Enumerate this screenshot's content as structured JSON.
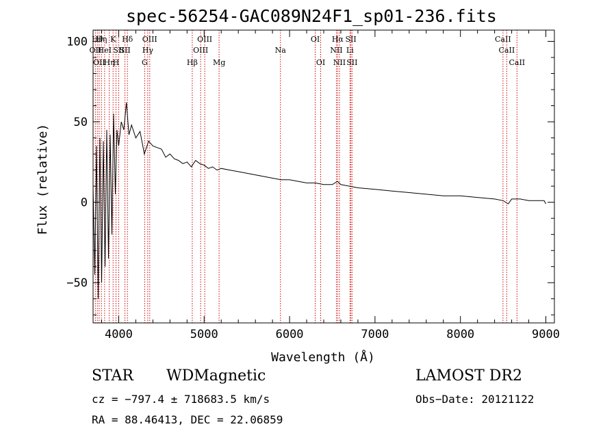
{
  "chart_data": {
    "type": "line",
    "title": "spec-56254-GAC089N24F1_sp01-236.fits",
    "xlabel": "Wavelength (Å)",
    "ylabel": "Flux (relative)",
    "xlim": [
      3700,
      9100
    ],
    "ylim": [
      -75,
      107
    ],
    "xticks": [
      4000,
      5000,
      6000,
      7000,
      8000,
      9000
    ],
    "yticks": [
      -50,
      0,
      50,
      100
    ],
    "grid": false,
    "spectrum": {
      "x": [
        3700,
        3720,
        3740,
        3760,
        3780,
        3800,
        3820,
        3840,
        3860,
        3880,
        3900,
        3920,
        3940,
        3960,
        3980,
        4000,
        4030,
        4060,
        4090,
        4120,
        4150,
        4200,
        4250,
        4300,
        4350,
        4400,
        4450,
        4500,
        4550,
        4600,
        4650,
        4700,
        4750,
        4800,
        4850,
        4900,
        4950,
        5000,
        5050,
        5100,
        5150,
        5200,
        5300,
        5400,
        5500,
        5600,
        5700,
        5800,
        5900,
        6000,
        6100,
        6200,
        6300,
        6400,
        6500,
        6560,
        6600,
        6700,
        6800,
        7000,
        7200,
        7400,
        7600,
        7800,
        8000,
        8200,
        8400,
        8500,
        8560,
        8600,
        8700,
        8800,
        8900,
        8980,
        9000
      ],
      "y": [
        10,
        -45,
        35,
        -60,
        40,
        -50,
        38,
        -40,
        45,
        -35,
        42,
        -20,
        55,
        5,
        45,
        35,
        50,
        45,
        62,
        42,
        48,
        40,
        44,
        30,
        38,
        35,
        34,
        33,
        28,
        30,
        27,
        26,
        24,
        25,
        22,
        26,
        24,
        23,
        21,
        22,
        20,
        21,
        20,
        19,
        18,
        17,
        16,
        15,
        14,
        14,
        13,
        12,
        12,
        11,
        11,
        13,
        11,
        10,
        9,
        8,
        7,
        6,
        5,
        4,
        4,
        3,
        2,
        1,
        -1,
        2,
        2,
        1,
        1,
        1,
        -1
      ],
      "color": "#000000"
    },
    "lines": [
      {
        "wl": 3727,
        "label": "OII",
        "row": 2
      },
      {
        "wl": 3750,
        "label": "Hθ",
        "row": 1
      },
      {
        "wl": 3771,
        "label": "OII",
        "row": 3
      },
      {
        "wl": 3798,
        "label": "Hη",
        "row": 1
      },
      {
        "wl": 3835,
        "label": "HeI",
        "row": 2
      },
      {
        "wl": 3889,
        "label": "Hη",
        "row": 3
      },
      {
        "wl": 3934,
        "label": "K",
        "row": 1
      },
      {
        "wl": 3968,
        "label": "H",
        "row": 3
      },
      {
        "wl": 4000,
        "label": "SII",
        "row": 2
      },
      {
        "wl": 4102,
        "label": "Hδ",
        "row": 1
      },
      {
        "wl": 4073,
        "label": "SII",
        "row": 2
      },
      {
        "wl": 4304,
        "label": "G",
        "row": 3
      },
      {
        "wl": 4340,
        "label": "Hγ",
        "row": 2
      },
      {
        "wl": 4363,
        "label": "OIII",
        "row": 1
      },
      {
        "wl": 4861,
        "label": "Hβ",
        "row": 3
      },
      {
        "wl": 4959,
        "label": "OIII",
        "row": 2
      },
      {
        "wl": 5007,
        "label": "OIII",
        "row": 1
      },
      {
        "wl": 5175,
        "label": "Mg",
        "row": 3
      },
      {
        "wl": 5893,
        "label": "Na",
        "row": 2
      },
      {
        "wl": 6300,
        "label": "OI",
        "row": 1
      },
      {
        "wl": 6364,
        "label": "OI",
        "row": 3
      },
      {
        "wl": 6548,
        "label": "NII",
        "row": 2
      },
      {
        "wl": 6563,
        "label": "Hα",
        "row": 1
      },
      {
        "wl": 6584,
        "label": "NII",
        "row": 3
      },
      {
        "wl": 6707,
        "label": "Li",
        "row": 2
      },
      {
        "wl": 6717,
        "label": "SII",
        "row": 1
      },
      {
        "wl": 6731,
        "label": "SII",
        "row": 3
      },
      {
        "wl": 8498,
        "label": "CaII",
        "row": 1
      },
      {
        "wl": 8542,
        "label": "CaII",
        "row": 2
      },
      {
        "wl": 8662,
        "label": "CaII",
        "row": 3
      }
    ],
    "line_color": "#cc0000"
  },
  "info": {
    "class": "STAR",
    "subclass": "WDMagnetic",
    "survey": "LAMOST DR2",
    "cz": "cz = −797.4 ± 718683.5 km/s",
    "obs_date": "Obs−Date: 20121122",
    "radec": "RA =  88.46413, DEC =  22.06859"
  }
}
